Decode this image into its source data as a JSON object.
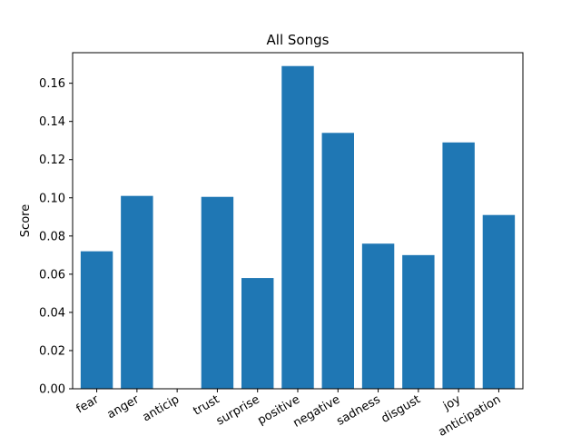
{
  "chart_data": {
    "type": "bar",
    "title": "All Songs",
    "xlabel": "",
    "ylabel": "Score",
    "categories": [
      "fear",
      "anger",
      "anticip",
      "trust",
      "surprise",
      "positive",
      "negative",
      "sadness",
      "disgust",
      "joy",
      "anticipation"
    ],
    "values": [
      0.072,
      0.101,
      0.0,
      0.1005,
      0.058,
      0.169,
      0.134,
      0.076,
      0.07,
      0.129,
      0.091
    ],
    "ylim": [
      0,
      0.176
    ],
    "yticks": [
      0.0,
      0.02,
      0.04,
      0.06,
      0.08,
      0.1,
      0.12,
      0.14,
      0.16
    ],
    "ytick_labels": [
      "0.00",
      "0.02",
      "0.04",
      "0.06",
      "0.08",
      "0.10",
      "0.12",
      "0.14",
      "0.16"
    ],
    "bar_color": "#1f77b4",
    "grid": false,
    "legend": "none"
  }
}
